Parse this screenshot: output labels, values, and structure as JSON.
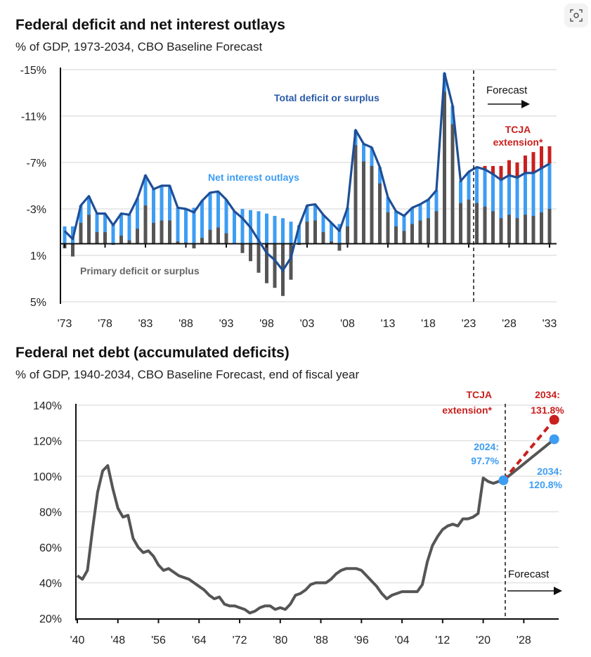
{
  "toolbar": {
    "visual_search_icon": "scan-lens-icon"
  },
  "colors": {
    "total": "#1f4e96",
    "interest": "#3d9df3",
    "primary": "#555555",
    "tcja": "#c8201e",
    "debt": "#555555"
  },
  "chart_data": [
    {
      "type": "bar",
      "title": "Federal deficit and net interest outlays",
      "subtitle": "% of GDP, 1973-2034, CBO Baseline Forecast",
      "ylim": [
        5,
        -15
      ],
      "yticks": [
        "-15%",
        "-11%",
        "-7%",
        "-3%",
        "1%",
        "5%"
      ],
      "ytick_values": [
        -15,
        -11,
        -7,
        -3,
        1,
        5
      ],
      "xticks": [
        "'73",
        "'78",
        "'83",
        "'88",
        "'93",
        "'98",
        "'03",
        "'08",
        "'13",
        "'18",
        "'23",
        "'28",
        "'33"
      ],
      "grid": true,
      "forecast_start": 2024,
      "annotations": {
        "total": "Total deficit or surplus",
        "interest": "Net interest outlays",
        "primary": "Primary deficit or surplus",
        "forecast": "Forecast",
        "tcja_line1": "TCJA",
        "tcja_line2": "extension*"
      },
      "years": [
        1973,
        1974,
        1975,
        1976,
        1977,
        1978,
        1979,
        1980,
        1981,
        1982,
        1983,
        1984,
        1985,
        1986,
        1987,
        1988,
        1989,
        1990,
        1991,
        1992,
        1993,
        1994,
        1995,
        1996,
        1997,
        1998,
        1999,
        2000,
        2001,
        2002,
        2003,
        2004,
        2005,
        2006,
        2007,
        2008,
        2009,
        2010,
        2011,
        2012,
        2013,
        2014,
        2015,
        2016,
        2017,
        2018,
        2019,
        2020,
        2021,
        2022,
        2023,
        2024,
        2025,
        2026,
        2027,
        2028,
        2029,
        2030,
        2031,
        2032,
        2033
      ],
      "series": [
        {
          "name": "Total deficit or surplus",
          "values": [
            -1.1,
            -0.4,
            -3.3,
            -4.1,
            -2.6,
            -2.6,
            -1.6,
            -2.6,
            -2.5,
            -3.9,
            -5.9,
            -4.7,
            -5.0,
            -5.0,
            -3.1,
            -3.0,
            -2.7,
            -3.7,
            -4.4,
            -4.5,
            -3.8,
            -2.8,
            -2.2,
            -1.4,
            -0.3,
            0.8,
            1.4,
            2.3,
            1.2,
            -1.5,
            -3.3,
            -3.4,
            -2.5,
            -1.8,
            -1.1,
            -3.1,
            -9.8,
            -8.6,
            -8.3,
            -6.6,
            -4.0,
            -2.8,
            -2.4,
            -3.1,
            -3.4,
            -3.8,
            -4.6,
            -14.7,
            -11.9,
            -5.4,
            -6.2,
            -6.6,
            -6.4,
            -6.0,
            -5.5,
            -5.9,
            -5.7,
            -6.1,
            -6.1,
            -6.5,
            -6.9
          ]
        },
        {
          "name": "Net interest outlays",
          "values": [
            1.5,
            1.5,
            1.5,
            1.6,
            1.6,
            1.6,
            1.7,
            1.9,
            2.2,
            2.6,
            2.6,
            2.9,
            3.0,
            3.0,
            2.9,
            2.9,
            3.1,
            3.2,
            3.2,
            3.1,
            2.9,
            2.8,
            3.0,
            2.9,
            2.8,
            2.6,
            2.4,
            2.2,
            1.9,
            1.6,
            1.4,
            1.4,
            1.5,
            1.6,
            1.7,
            1.6,
            1.3,
            1.5,
            1.6,
            1.4,
            1.3,
            1.3,
            1.3,
            1.4,
            1.4,
            1.6,
            1.8,
            1.6,
            1.6,
            1.9,
            2.4,
            3.1,
            3.2,
            3.2,
            3.3,
            3.4,
            3.5,
            3.6,
            3.7,
            3.8,
            3.9
          ]
        },
        {
          "name": "Primary deficit or surplus",
          "values": [
            0.4,
            1.1,
            -1.8,
            -2.5,
            -1.0,
            -1.0,
            0.1,
            -0.7,
            -0.3,
            -1.3,
            -3.3,
            -1.8,
            -2.0,
            -2.0,
            -0.2,
            -0.1,
            0.4,
            -0.5,
            -1.2,
            -1.4,
            -0.9,
            0.0,
            0.8,
            1.5,
            2.5,
            3.4,
            3.8,
            4.5,
            3.1,
            0.1,
            -1.9,
            -2.0,
            -1.0,
            -0.2,
            0.6,
            -1.5,
            -8.5,
            -7.1,
            -6.7,
            -5.2,
            -2.7,
            -1.5,
            -1.1,
            -1.7,
            -2.0,
            -2.2,
            -2.8,
            -13.1,
            -10.3,
            -3.5,
            -3.8,
            -3.5,
            -3.2,
            -2.8,
            -2.2,
            -2.5,
            -2.2,
            -2.5,
            -2.4,
            -2.7,
            -3.0
          ]
        },
        {
          "name": "TCJA extension*",
          "years": [
            2025,
            2026,
            2027,
            2028,
            2029,
            2030,
            2031,
            2032,
            2033
          ],
          "values": [
            0.3,
            0.7,
            1.2,
            1.3,
            1.3,
            1.5,
            1.8,
            1.9,
            1.5
          ]
        }
      ]
    },
    {
      "type": "line",
      "title": "Federal net debt (accumulated deficits)",
      "subtitle": "% of GDP, 1940-2034, CBO Baseline Forecast, end of fiscal year",
      "ylim": [
        20,
        140
      ],
      "yticks": [
        "20%",
        "40%",
        "60%",
        "80%",
        "100%",
        "120%",
        "140%"
      ],
      "ytick_values": [
        20,
        40,
        60,
        80,
        100,
        120,
        140
      ],
      "xticks": [
        "'40",
        "'48",
        "'56",
        "'64",
        "'72",
        "'80",
        "'88",
        "'96",
        "'04",
        "'12",
        "'20",
        "'28"
      ],
      "grid": true,
      "forecast_start": 2024,
      "annotations": {
        "forecast": "Forecast",
        "tcja_line1": "TCJA",
        "tcja_line2": "extension*",
        "tcja_end_line1": "2034:",
        "tcja_end_line2": "131.8%",
        "start_line1": "2024:",
        "start_line2": "97.7%",
        "base_end_line1": "2034:",
        "base_end_line2": "120.8%"
      },
      "history": {
        "start_year": 1940,
        "values": [
          44,
          42,
          47,
          70,
          91,
          103,
          106,
          93,
          82,
          77,
          78,
          65,
          60,
          57,
          58,
          55,
          50,
          47,
          48,
          46,
          44,
          43,
          42,
          40,
          38,
          36,
          33,
          31,
          32,
          28,
          27,
          27,
          26,
          25,
          23,
          24,
          26,
          27,
          27,
          25,
          26,
          25,
          28,
          33,
          34,
          36,
          39,
          40,
          40,
          40,
          42,
          45,
          47,
          48,
          48,
          48,
          47,
          44,
          41,
          38,
          34,
          31,
          33,
          34,
          35,
          35,
          35,
          35,
          39,
          52,
          61,
          66,
          70,
          72,
          73,
          72,
          76,
          76,
          77,
          79,
          99,
          97,
          96,
          97,
          97.7
        ]
      },
      "series": [
        {
          "name": "CBO Baseline",
          "x": [
            2024,
            2034
          ],
          "values": [
            97.7,
            120.8
          ]
        },
        {
          "name": "TCJA extension*",
          "x": [
            2024,
            2034
          ],
          "values": [
            97.7,
            131.8
          ]
        }
      ]
    }
  ]
}
